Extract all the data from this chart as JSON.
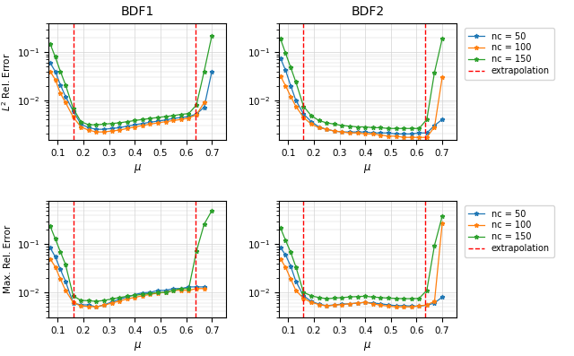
{
  "mu_values": [
    0.07,
    0.09,
    0.11,
    0.13,
    0.16,
    0.19,
    0.22,
    0.25,
    0.28,
    0.31,
    0.34,
    0.37,
    0.4,
    0.43,
    0.46,
    0.49,
    0.52,
    0.55,
    0.58,
    0.61,
    0.64,
    0.67,
    0.7,
    0.73
  ],
  "vline1": 0.16,
  "vline2": 0.635,
  "colors": [
    "#1f77b4",
    "#ff7f0e",
    "#2ca02c"
  ],
  "nc_labels": [
    "nc = 50",
    "nc = 100",
    "nc = 150"
  ],
  "ylabel_top": "$L^2$ Rel. Error",
  "ylabel_bot": "Max. Rel. Error",
  "xlabel": "$\\mu$",
  "bdf1_l2_nc50": [
    0.06,
    0.04,
    0.021,
    0.012,
    0.006,
    0.0032,
    0.0027,
    0.0025,
    0.0025,
    0.0026,
    0.0027,
    0.0029,
    0.0031,
    0.0033,
    0.0035,
    0.0037,
    0.0039,
    0.0042,
    0.0044,
    0.0046,
    0.0052,
    0.0072,
    0.04,
    null
  ],
  "bdf1_l2_nc100": [
    0.04,
    0.027,
    0.014,
    0.009,
    0.0045,
    0.0028,
    0.0024,
    0.0022,
    0.0022,
    0.0023,
    0.0024,
    0.0026,
    0.0028,
    0.003,
    0.0032,
    0.0034,
    0.0036,
    0.0038,
    0.004,
    0.0043,
    0.005,
    0.009,
    null,
    null
  ],
  "bdf1_l2_nc150": [
    0.15,
    0.08,
    0.04,
    0.021,
    0.0068,
    0.0036,
    0.0031,
    0.0031,
    0.0032,
    0.0033,
    0.0034,
    0.0036,
    0.0038,
    0.004,
    0.0042,
    0.0044,
    0.0046,
    0.0048,
    0.0051,
    0.0053,
    0.008,
    0.04,
    0.22,
    null
  ],
  "bdf2_l2_nc50": [
    0.075,
    0.042,
    0.02,
    0.01,
    0.0052,
    0.0036,
    0.0028,
    0.0025,
    0.0023,
    0.0022,
    0.0022,
    0.0022,
    0.0022,
    0.0021,
    0.0021,
    0.0021,
    0.002,
    0.002,
    0.002,
    0.0021,
    0.0021,
    0.003,
    0.004,
    null
  ],
  "bdf2_l2_nc100": [
    0.032,
    0.02,
    0.012,
    0.0075,
    0.0044,
    0.0032,
    0.0027,
    0.0025,
    0.0023,
    0.0022,
    0.0021,
    0.0021,
    0.002,
    0.002,
    0.0019,
    0.0018,
    0.0018,
    0.0017,
    0.0017,
    0.0017,
    0.0017,
    0.0028,
    0.03,
    null
  ],
  "bdf2_l2_nc150": [
    0.19,
    0.095,
    0.048,
    0.024,
    0.0075,
    0.0048,
    0.0038,
    0.0034,
    0.0032,
    0.003,
    0.0029,
    0.0028,
    0.0028,
    0.0027,
    0.0027,
    0.0026,
    0.0026,
    0.0026,
    0.0026,
    0.0026,
    0.004,
    0.038,
    0.19,
    null
  ],
  "bdf1_mx_nc50": [
    0.085,
    0.055,
    0.03,
    0.017,
    0.006,
    0.0055,
    0.0055,
    0.005,
    0.0055,
    0.0063,
    0.0072,
    0.008,
    0.009,
    0.0098,
    0.01,
    0.011,
    0.011,
    0.012,
    0.012,
    0.013,
    0.013,
    0.013,
    null,
    null
  ],
  "bdf1_mx_nc100": [
    0.05,
    0.034,
    0.019,
    0.011,
    0.0062,
    0.0052,
    0.0051,
    0.005,
    0.0054,
    0.006,
    0.0066,
    0.0073,
    0.0079,
    0.0085,
    0.0091,
    0.0097,
    0.01,
    0.011,
    0.011,
    0.011,
    0.012,
    0.012,
    null,
    null
  ],
  "bdf1_mx_nc150": [
    0.24,
    0.13,
    0.07,
    0.038,
    0.0085,
    0.0068,
    0.0067,
    0.0065,
    0.0068,
    0.0073,
    0.0078,
    0.0083,
    0.0087,
    0.0091,
    0.0095,
    0.0099,
    0.01,
    0.011,
    0.012,
    0.012,
    0.072,
    0.26,
    0.5,
    null
  ],
  "bdf2_mx_nc50": [
    0.085,
    0.06,
    0.035,
    0.017,
    0.0085,
    0.0065,
    0.0057,
    0.0053,
    0.0055,
    0.0057,
    0.0058,
    0.006,
    0.0062,
    0.006,
    0.0058,
    0.0055,
    0.0053,
    0.0053,
    0.0052,
    0.0052,
    0.0054,
    0.006,
    0.008,
    null
  ],
  "bdf2_mx_nc100": [
    0.05,
    0.033,
    0.019,
    0.011,
    0.0075,
    0.0062,
    0.0056,
    0.0052,
    0.0054,
    0.0056,
    0.0058,
    0.006,
    0.0062,
    0.0058,
    0.0054,
    0.0052,
    0.005,
    0.005,
    0.005,
    0.0052,
    0.0055,
    0.0065,
    0.27,
    null
  ],
  "bdf2_mx_nc150": [
    0.22,
    0.12,
    0.068,
    0.034,
    0.01,
    0.0085,
    0.0078,
    0.0074,
    0.0076,
    0.0078,
    0.008,
    0.0082,
    0.0083,
    0.008,
    0.0078,
    0.0076,
    0.0075,
    0.0074,
    0.0074,
    0.0075,
    0.011,
    0.095,
    0.38,
    null
  ]
}
